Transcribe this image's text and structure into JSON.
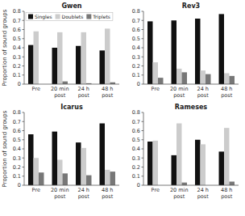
{
  "chart_data": [
    {
      "type": "bar",
      "title": "Gwen",
      "categories": [
        "Pre",
        "20 min\npost",
        "24 h\npost",
        "48 h\npost"
      ],
      "series": [
        {
          "name": "Singles",
          "color": "#111111",
          "values": [
            0.43,
            0.4,
            0.42,
            0.37
          ]
        },
        {
          "name": "Doublets",
          "color": "#cccccc",
          "values": [
            0.58,
            0.57,
            0.57,
            0.61
          ]
        },
        {
          "name": "Triplets",
          "color": "#777777",
          "values": [
            0.0,
            0.03,
            0.01,
            0.02
          ]
        }
      ],
      "ylabel": "Proportion of sound groups",
      "ylim": [
        0,
        0.8
      ],
      "yticks": [
        0,
        0.1,
        0.2,
        0.3,
        0.4,
        0.5,
        0.6,
        0.7,
        0.8
      ],
      "legend": "upper left"
    },
    {
      "type": "bar",
      "title": "Rev3",
      "categories": [
        "Pre",
        "20 min\npost",
        "24 h\npost",
        "48 h\npost"
      ],
      "series": [
        {
          "color": "#111111",
          "values": [
            0.69,
            0.7,
            0.72,
            0.77
          ]
        },
        {
          "color": "#cccccc",
          "values": [
            0.24,
            0.17,
            0.15,
            0.12
          ]
        },
        {
          "color": "#777777",
          "values": [
            0.07,
            0.13,
            0.11,
            0.09
          ]
        }
      ],
      "ylim": [
        0,
        0.8
      ],
      "yticks": [
        0,
        0.1,
        0.2,
        0.3,
        0.4,
        0.5,
        0.6,
        0.7,
        0.8
      ]
    },
    {
      "type": "bar",
      "title": "Icarus",
      "categories": [
        "Pre",
        "20 min\npost",
        "24 h\npost",
        "48 h\npost"
      ],
      "series": [
        {
          "color": "#111111",
          "values": [
            0.56,
            0.59,
            0.47,
            0.68
          ]
        },
        {
          "color": "#cccccc",
          "values": [
            0.3,
            0.28,
            0.41,
            0.17
          ]
        },
        {
          "color": "#777777",
          "values": [
            0.14,
            0.13,
            0.11,
            0.15
          ]
        }
      ],
      "ylabel": "Proportion of sound groups",
      "ylim": [
        0,
        0.8
      ],
      "yticks": [
        0,
        0.1,
        0.2,
        0.3,
        0.4,
        0.5,
        0.6,
        0.7,
        0.8
      ]
    },
    {
      "type": "bar",
      "title": "Rameses",
      "categories": [
        "Pre",
        "20 min\npost",
        "24 h\npost",
        "48 h\npost"
      ],
      "series": [
        {
          "color": "#111111",
          "values": [
            0.48,
            0.33,
            0.5,
            0.37
          ]
        },
        {
          "color": "#cccccc",
          "values": [
            0.49,
            0.68,
            0.45,
            0.63
          ]
        },
        {
          "color": "#777777",
          "values": [
            0.0,
            0.03,
            0.0,
            0.04
          ]
        }
      ],
      "ylim": [
        0,
        0.8
      ],
      "yticks": [
        0,
        0.1,
        0.2,
        0.3,
        0.4,
        0.5,
        0.6,
        0.7,
        0.8
      ]
    }
  ]
}
